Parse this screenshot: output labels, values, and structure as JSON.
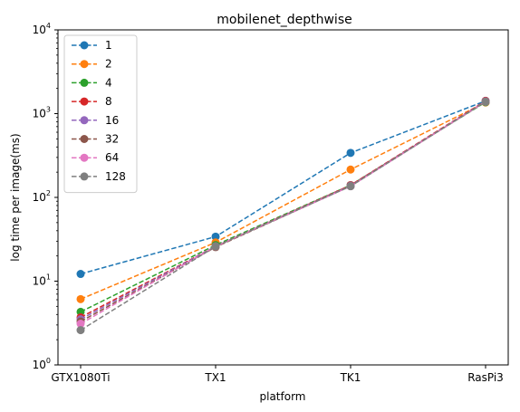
{
  "chart_data": {
    "type": "line",
    "title": "mobilenet_depthwise",
    "xlabel": "platform",
    "ylabel": "log time per image(ms)",
    "categories": [
      "GTX1080Ti",
      "TX1",
      "TK1",
      "RasPi3"
    ],
    "yscale": "log",
    "ylim": [
      1,
      10000
    ],
    "yticks": [
      {
        "value": 1,
        "base": "10",
        "exp": "0"
      },
      {
        "value": 10,
        "base": "10",
        "exp": "1"
      },
      {
        "value": 100,
        "base": "10",
        "exp": "2"
      },
      {
        "value": 1000,
        "base": "10",
        "exp": "3"
      },
      {
        "value": 10000,
        "base": "10",
        "exp": "4"
      }
    ],
    "grid": false,
    "legend_position": "top-left",
    "series": [
      {
        "name": "1",
        "color": "#1f77b4",
        "values": [
          12.2,
          34,
          340,
          1420
        ]
      },
      {
        "name": "2",
        "color": "#ff7f0e",
        "values": [
          6.1,
          29,
          215,
          1360
        ]
      },
      {
        "name": "4",
        "color": "#2ca02c",
        "values": [
          4.3,
          27,
          140,
          1370
        ]
      },
      {
        "name": "8",
        "color": "#d62728",
        "values": [
          3.7,
          26,
          140,
          1420
        ]
      },
      {
        "name": "16",
        "color": "#9467bd",
        "values": [
          3.5,
          26,
          138,
          1400
        ]
      },
      {
        "name": "32",
        "color": "#8c564b",
        "values": [
          3.3,
          25.5,
          137,
          1390
        ]
      },
      {
        "name": "64",
        "color": "#e377c2",
        "values": [
          3.1,
          26,
          136,
          1390
        ]
      },
      {
        "name": "128",
        "color": "#7f7f7f",
        "values": [
          2.6,
          26,
          136,
          1390
        ]
      }
    ]
  }
}
